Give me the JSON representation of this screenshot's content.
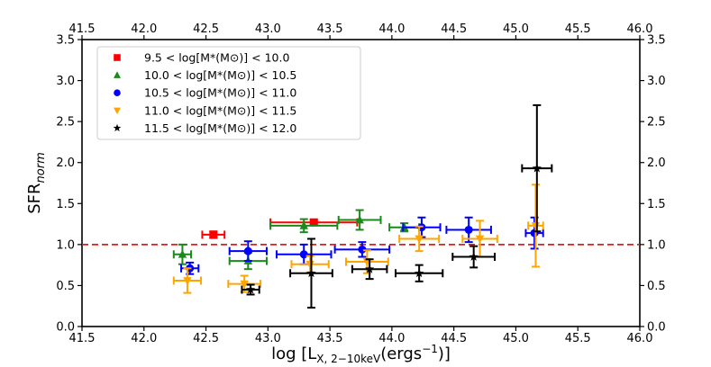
{
  "chart_data": {
    "type": "scatter",
    "title": "",
    "xlabel": "log [L_{X, 2-10keV}(ergs^{-1})]",
    "ylabel": "SFR_{norm}",
    "xlim": [
      41.5,
      46.0
    ],
    "ylim": [
      0.0,
      3.5
    ],
    "x_ticks": [
      "41.5",
      "42.0",
      "42.5",
      "43.0",
      "43.5",
      "44.0",
      "44.5",
      "45.0",
      "45.5",
      "46.0"
    ],
    "y_ticks": [
      "0.0",
      "0.5",
      "1.0",
      "1.5",
      "2.0",
      "2.5",
      "3.0",
      "3.5"
    ],
    "reference_line": {
      "y": 1.0,
      "style": "dashed",
      "color": "#e41a1c"
    },
    "legend_position": "top-left",
    "series": [
      {
        "name": "9.5 < log[M*(M⊙)] < 10.0",
        "range": [
          "9.5",
          "10.0"
        ],
        "marker": "square",
        "color": "#ff0000",
        "points": [
          {
            "x": 42.56,
            "y": 1.12,
            "xerr": 0.09,
            "yerr": 0.04
          },
          {
            "x": 43.37,
            "y": 1.27,
            "xerr": 0.35,
            "yerr": 0.03
          }
        ]
      },
      {
        "name": "10.0 < log[M*(M⊙)] < 10.5",
        "range": [
          "10.0",
          "10.5"
        ],
        "marker": "triangle-up",
        "color": "#1a8a1a",
        "points": [
          {
            "x": 42.31,
            "y": 0.88,
            "xerr": 0.07,
            "yerr": 0.12
          },
          {
            "x": 42.84,
            "y": 0.8,
            "xerr": 0.15,
            "yerr": 0.1
          },
          {
            "x": 43.29,
            "y": 1.23,
            "xerr": 0.27,
            "yerr": 0.08
          },
          {
            "x": 43.74,
            "y": 1.3,
            "xerr": 0.17,
            "yerr": 0.12
          },
          {
            "x": 44.1,
            "y": 1.21,
            "xerr": 0.12,
            "yerr": 0.05
          }
        ]
      },
      {
        "name": "10.5 < log[M*(M⊙)] < 11.0",
        "range": [
          "10.5",
          "11.0"
        ],
        "marker": "circle",
        "color": "#0000ff",
        "points": [
          {
            "x": 42.37,
            "y": 0.71,
            "xerr": 0.07,
            "yerr": 0.07
          },
          {
            "x": 42.84,
            "y": 0.92,
            "xerr": 0.15,
            "yerr": 0.12
          },
          {
            "x": 43.29,
            "y": 0.88,
            "xerr": 0.22,
            "yerr": 0.12
          },
          {
            "x": 43.76,
            "y": 0.94,
            "xerr": 0.22,
            "yerr": 0.09
          },
          {
            "x": 44.24,
            "y": 1.21,
            "xerr": 0.15,
            "yerr": 0.12
          },
          {
            "x": 44.62,
            "y": 1.18,
            "xerr": 0.18,
            "yerr": 0.15
          },
          {
            "x": 45.15,
            "y": 1.14,
            "xerr": 0.07,
            "yerr": 0.19
          }
        ]
      },
      {
        "name": "11.0 < log[M*(M⊙)] < 11.5",
        "range": [
          "11.0",
          "11.5"
        ],
        "marker": "triangle-down",
        "color": "#ffa500",
        "points": [
          {
            "x": 42.35,
            "y": 0.56,
            "xerr": 0.11,
            "yerr": 0.15
          },
          {
            "x": 42.81,
            "y": 0.52,
            "xerr": 0.13,
            "yerr": 0.1
          },
          {
            "x": 43.34,
            "y": 0.76,
            "xerr": 0.15,
            "yerr": 0.1
          },
          {
            "x": 43.8,
            "y": 0.79,
            "xerr": 0.17,
            "yerr": 0.14
          },
          {
            "x": 44.22,
            "y": 1.07,
            "xerr": 0.16,
            "yerr": 0.15
          },
          {
            "x": 44.71,
            "y": 1.07,
            "xerr": 0.14,
            "yerr": 0.22
          },
          {
            "x": 45.16,
            "y": 1.23,
            "xerr": 0.06,
            "yerr": 0.5
          }
        ]
      },
      {
        "name": "11.5 < log[M*(M⊙)] < 12.0",
        "range": [
          "11.5",
          "12.0"
        ],
        "marker": "star",
        "color": "#000000",
        "points": [
          {
            "x": 42.86,
            "y": 0.45,
            "xerr": 0.07,
            "yerr": 0.06
          },
          {
            "x": 43.35,
            "y": 0.65,
            "xerr": 0.17,
            "yerr": 0.42
          },
          {
            "x": 43.82,
            "y": 0.7,
            "xerr": 0.14,
            "yerr": 0.12
          },
          {
            "x": 44.22,
            "y": 0.65,
            "xerr": 0.19,
            "yerr": 0.1
          },
          {
            "x": 44.66,
            "y": 0.85,
            "xerr": 0.17,
            "yerr": 0.13
          },
          {
            "x": 45.17,
            "y": 1.93,
            "xerr": 0.12,
            "yerr": 0.77
          }
        ]
      }
    ]
  }
}
